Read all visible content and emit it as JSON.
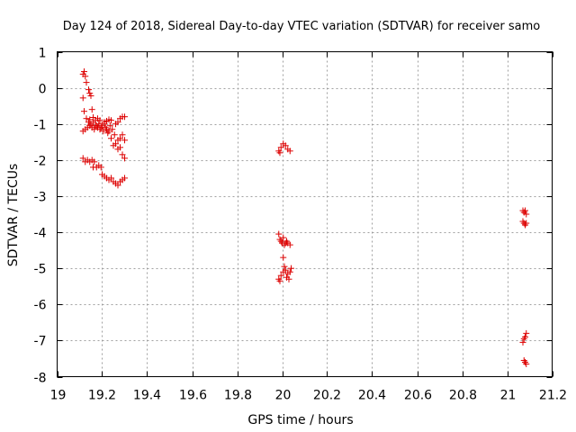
{
  "chart_data": {
    "type": "scatter",
    "title": "Day 124 of 2018, Sidereal Day-to-day VTEC variation (SDTVAR) for receiver samo",
    "xlabel": "GPS time / hours",
    "ylabel": "SDTVAR / TECUs",
    "xlim": [
      19,
      21.2
    ],
    "ylim": [
      -8,
      1
    ],
    "xticks": [
      19,
      19.2,
      19.4,
      19.6,
      19.8,
      20,
      20.2,
      20.4,
      20.6,
      20.8,
      21,
      21.2
    ],
    "xtick_labels": [
      "19",
      "19.2",
      "19.4",
      "19.6",
      "19.8",
      "20",
      "20.2",
      "20.4",
      "20.6",
      "20.8",
      "21",
      "21.2"
    ],
    "yticks": [
      1,
      0,
      -1,
      -2,
      -3,
      -4,
      -5,
      -6,
      -7,
      -8
    ],
    "ytick_labels": [
      "1",
      "0",
      "-1",
      "-2",
      "-3",
      "-4",
      "-5",
      "-6",
      "-7",
      "-8"
    ],
    "grid": true,
    "marker": "+",
    "color": "#dd0000",
    "series": [
      {
        "points": [
          [
            19.115,
            0.38
          ],
          [
            19.12,
            0.45
          ],
          [
            19.125,
            0.32
          ],
          [
            19.13,
            0.15
          ],
          [
            19.14,
            -0.05
          ],
          [
            19.145,
            -0.15
          ],
          [
            19.15,
            -0.22
          ],
          [
            19.115,
            -0.28
          ],
          [
            19.12,
            -0.65
          ],
          [
            19.13,
            -0.85
          ],
          [
            19.145,
            -0.88
          ],
          [
            19.155,
            -0.6
          ],
          [
            19.16,
            -0.82
          ],
          [
            19.17,
            -0.9
          ],
          [
            19.18,
            -0.85
          ],
          [
            19.19,
            -0.9
          ],
          [
            19.21,
            -0.95
          ],
          [
            19.22,
            -0.92
          ],
          [
            19.23,
            -0.88
          ],
          [
            19.24,
            -0.9
          ],
          [
            19.26,
            -1.0
          ],
          [
            19.27,
            -0.95
          ],
          [
            19.28,
            -0.85
          ],
          [
            19.29,
            -0.8
          ],
          [
            19.3,
            -0.8
          ],
          [
            19.115,
            -1.2
          ],
          [
            19.125,
            -1.15
          ],
          [
            19.135,
            -1.1
          ],
          [
            19.145,
            -1.05
          ],
          [
            19.155,
            -1.1
          ],
          [
            19.165,
            -1.15
          ],
          [
            19.175,
            -1.05
          ],
          [
            19.185,
            -1.0
          ],
          [
            19.195,
            -1.1
          ],
          [
            19.205,
            -1.2
          ],
          [
            19.215,
            -1.1
          ],
          [
            19.225,
            -1.25
          ],
          [
            19.235,
            -1.05
          ],
          [
            19.245,
            -1.15
          ],
          [
            19.255,
            -1.3
          ],
          [
            19.14,
            -0.95
          ],
          [
            19.15,
            -1.0
          ],
          [
            19.16,
            -0.95
          ],
          [
            19.17,
            -1.05
          ],
          [
            19.18,
            -1.1
          ],
          [
            19.19,
            -1.15
          ],
          [
            19.2,
            -1.05
          ],
          [
            19.21,
            -1.0
          ],
          [
            19.22,
            -1.15
          ],
          [
            19.23,
            -1.2
          ],
          [
            19.24,
            -1.4
          ],
          [
            19.25,
            -1.6
          ],
          [
            19.26,
            -1.55
          ],
          [
            19.27,
            -1.45
          ],
          [
            19.28,
            -1.4
          ],
          [
            19.29,
            -1.3
          ],
          [
            19.3,
            -1.45
          ],
          [
            19.27,
            -1.7
          ],
          [
            19.28,
            -1.65
          ],
          [
            19.29,
            -1.85
          ],
          [
            19.3,
            -1.95
          ],
          [
            19.115,
            -1.95
          ],
          [
            19.125,
            -2.05
          ],
          [
            19.135,
            -2.0
          ],
          [
            19.145,
            -2.05
          ],
          [
            19.155,
            -2.0
          ],
          [
            19.165,
            -2.05
          ],
          [
            19.175,
            -2.2
          ],
          [
            19.185,
            -2.15
          ],
          [
            19.195,
            -2.2
          ],
          [
            19.16,
            -2.2
          ],
          [
            19.2,
            -2.4
          ],
          [
            19.21,
            -2.45
          ],
          [
            19.22,
            -2.5
          ],
          [
            19.23,
            -2.55
          ],
          [
            19.24,
            -2.5
          ],
          [
            19.25,
            -2.6
          ],
          [
            19.26,
            -2.65
          ],
          [
            19.27,
            -2.7
          ],
          [
            19.28,
            -2.6
          ],
          [
            19.29,
            -2.55
          ],
          [
            19.3,
            -2.5
          ],
          [
            19.985,
            -1.75
          ],
          [
            19.99,
            -1.8
          ],
          [
            19.995,
            -1.65
          ],
          [
            20.005,
            -1.55
          ],
          [
            20.015,
            -1.6
          ],
          [
            20.025,
            -1.7
          ],
          [
            20.035,
            -1.75
          ],
          [
            19.985,
            -4.05
          ],
          [
            19.99,
            -4.2
          ],
          [
            19.995,
            -4.25
          ],
          [
            20.0,
            -4.3
          ],
          [
            20.005,
            -4.15
          ],
          [
            20.01,
            -4.35
          ],
          [
            20.015,
            -4.3
          ],
          [
            20.02,
            -4.25
          ],
          [
            20.025,
            -4.3
          ],
          [
            20.035,
            -4.35
          ],
          [
            20.005,
            -4.7
          ],
          [
            19.985,
            -5.3
          ],
          [
            19.99,
            -5.35
          ],
          [
            19.995,
            -5.2
          ],
          [
            20.005,
            -5.1
          ],
          [
            20.01,
            -4.95
          ],
          [
            20.015,
            -5.05
          ],
          [
            20.02,
            -5.25
          ],
          [
            20.025,
            -5.15
          ],
          [
            20.03,
            -5.3
          ],
          [
            20.035,
            -5.1
          ],
          [
            20.04,
            -5.0
          ],
          [
            21.07,
            -3.4
          ],
          [
            21.075,
            -3.45
          ],
          [
            21.08,
            -3.4
          ],
          [
            21.085,
            -3.5
          ],
          [
            21.07,
            -3.7
          ],
          [
            21.075,
            -3.75
          ],
          [
            21.08,
            -3.8
          ],
          [
            21.085,
            -3.75
          ],
          [
            21.07,
            -7.05
          ],
          [
            21.075,
            -6.95
          ],
          [
            21.08,
            -6.9
          ],
          [
            21.085,
            -6.8
          ],
          [
            21.075,
            -7.55
          ],
          [
            21.08,
            -7.6
          ],
          [
            21.085,
            -7.65
          ]
        ]
      }
    ]
  }
}
